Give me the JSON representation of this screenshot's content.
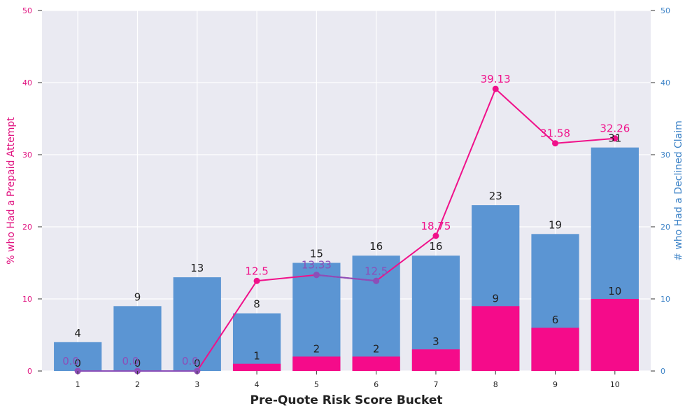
{
  "chart_data": {
    "type": "bar",
    "xlabel": "Pre-Quote Risk Score Bucket",
    "ylabel_left": "% who Had a Prepaid Attempt",
    "ylabel_right": "# who Had a Declined Claim",
    "ylim": [
      0,
      50
    ],
    "yticks": [
      "0",
      "10",
      "20",
      "30",
      "40",
      "50"
    ],
    "categories": [
      "1",
      "2",
      "3",
      "4",
      "5",
      "6",
      "7",
      "8",
      "9",
      "10"
    ],
    "series": [
      {
        "kind": "bar",
        "axis": "right",
        "color": "#5b95d3",
        "values": [
          4,
          9,
          13,
          8,
          15,
          16,
          16,
          23,
          19,
          31
        ],
        "labels": [
          "4",
          "9",
          "13",
          "8",
          "15",
          "16",
          "16",
          "23",
          "19",
          "31"
        ]
      },
      {
        "kind": "bar",
        "axis": "right",
        "color": "#f50b8a",
        "values": [
          0,
          0,
          0,
          1,
          2,
          2,
          3,
          9,
          6,
          10
        ],
        "labels": [
          "0",
          "0",
          "0",
          "1",
          "2",
          "2",
          "3",
          "9",
          "6",
          "10"
        ]
      },
      {
        "kind": "line",
        "axis": "left",
        "color": "#f0118a",
        "values": [
          0,
          0,
          0,
          12.5,
          13.33,
          12.5,
          18.75,
          39.13,
          31.58,
          32.26
        ],
        "labels": [
          "0.0",
          "0.0",
          "0.0",
          "12.5",
          "13.33",
          "12.5",
          "18.75",
          "39.13",
          "31.58",
          "32.26"
        ]
      }
    ],
    "colors": {
      "left_axis": "#e0117f",
      "right_axis": "#3d83c7",
      "background": "#eaeaf2",
      "grid": "#ffffff",
      "line_over_bars": "#8b4fb8"
    },
    "grid": true
  }
}
